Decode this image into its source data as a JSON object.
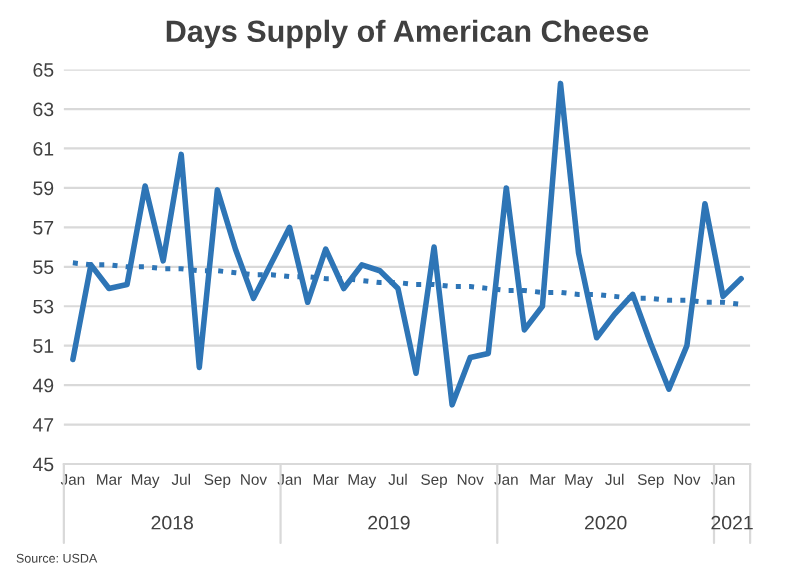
{
  "chart_data": {
    "type": "line",
    "title": "Days Supply of American Cheese",
    "categories": [
      "Jan",
      null,
      "Mar",
      null,
      "May",
      null,
      "Jul",
      null,
      "Sep",
      null,
      "Nov",
      null,
      "Jan",
      null,
      "Mar",
      null,
      "May",
      null,
      "Jul",
      null,
      "Sep",
      null,
      "Nov",
      null,
      "Jan",
      null,
      "Mar",
      null,
      "May",
      null,
      "Jul",
      null,
      "Sep",
      null,
      "Nov",
      null,
      "Jan",
      null
    ],
    "series": [
      {
        "color": "#2e75b6",
        "line_style": "solid",
        "values": [
          50.3,
          55.1,
          53.9,
          54.1,
          59.1,
          55.3,
          60.7,
          49.9,
          58.9,
          55.9,
          53.4,
          55.2,
          57.0,
          53.2,
          55.9,
          53.9,
          55.1,
          54.8,
          53.9,
          49.6,
          56.0,
          48.0,
          50.4,
          50.6,
          59.0,
          51.8,
          53.0,
          64.3,
          55.7,
          51.4,
          52.6,
          53.6,
          51.1,
          48.8,
          51.0,
          58.2,
          53.5,
          54.4
        ]
      },
      {
        "color": "#2e75b6",
        "line_style": "dotted",
        "values": [
          55.2,
          55.1,
          55.1,
          55.0,
          55.0,
          54.9,
          54.9,
          54.8,
          54.8,
          54.7,
          54.6,
          54.6,
          54.5,
          54.5,
          54.4,
          54.4,
          54.3,
          54.2,
          54.2,
          54.1,
          54.1,
          54.0,
          54.0,
          53.9,
          53.8,
          53.8,
          53.7,
          53.7,
          53.6,
          53.6,
          53.5,
          53.4,
          53.4,
          53.3,
          53.3,
          53.2,
          53.2,
          53.1
        ]
      }
    ],
    "ylim": [
      45,
      65
    ],
    "yticks": [
      45,
      47,
      49,
      51,
      53,
      55,
      57,
      59,
      61,
      63,
      65
    ],
    "grid": "y",
    "legend": false,
    "annotations": [
      "2018",
      "2019",
      "2020",
      "2021",
      "Source: USDA"
    ]
  }
}
